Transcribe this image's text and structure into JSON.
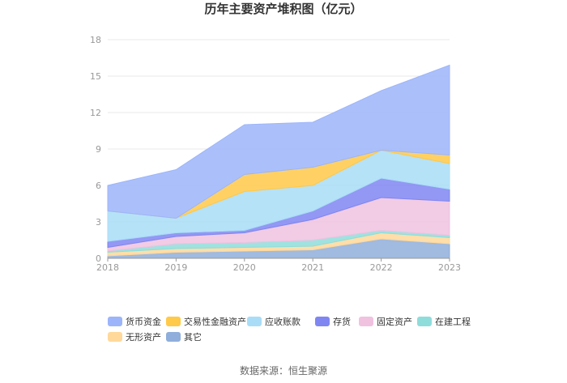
{
  "chart_data": {
    "type": "area",
    "stacked": true,
    "title": "历年主要资产堆积图（亿元）",
    "x": [
      "2018",
      "2019",
      "2020",
      "2021",
      "2022",
      "2023"
    ],
    "ylim": [
      0,
      18
    ],
    "yticks": [
      "0",
      "3",
      "6",
      "9",
      "12",
      "15",
      "18"
    ],
    "series": [
      {
        "name": "其它",
        "color": "#8FAEDB",
        "values": [
          0.2,
          0.5,
          0.6,
          0.7,
          1.6,
          1.2
        ]
      },
      {
        "name": "无形资产",
        "color": "#FFD89A",
        "values": [
          0.3,
          0.3,
          0.3,
          0.3,
          0.5,
          0.5
        ]
      },
      {
        "name": "在建工程",
        "color": "#8FDDDB",
        "values": [
          0.1,
          0.4,
          0.4,
          0.5,
          0.2,
          0.2
        ]
      },
      {
        "name": "固定资产",
        "color": "#F0C2E0",
        "values": [
          0.3,
          0.6,
          0.8,
          1.7,
          2.7,
          2.8
        ]
      },
      {
        "name": "存货",
        "color": "#7F86F2",
        "values": [
          0.5,
          0.3,
          0.2,
          0.7,
          1.6,
          1.0
        ]
      },
      {
        "name": "应收账款",
        "color": "#A9DDF7",
        "values": [
          2.5,
          1.2,
          3.2,
          2.1,
          2.3,
          2.1
        ]
      },
      {
        "name": "交易性金融资产",
        "color": "#FFC94A",
        "values": [
          0.0,
          0.0,
          1.4,
          1.5,
          0.0,
          0.7
        ]
      },
      {
        "name": "货币资金",
        "color": "#9CB5FA",
        "values": [
          2.1,
          4.0,
          4.1,
          3.7,
          4.9,
          7.4
        ]
      }
    ],
    "legend_order": [
      "货币资金",
      "交易性金融资产",
      "应收账款",
      "存货",
      "固定资产",
      "在建工程",
      "无形资产",
      "其它"
    ],
    "source": "数据来源：恒生聚源"
  }
}
